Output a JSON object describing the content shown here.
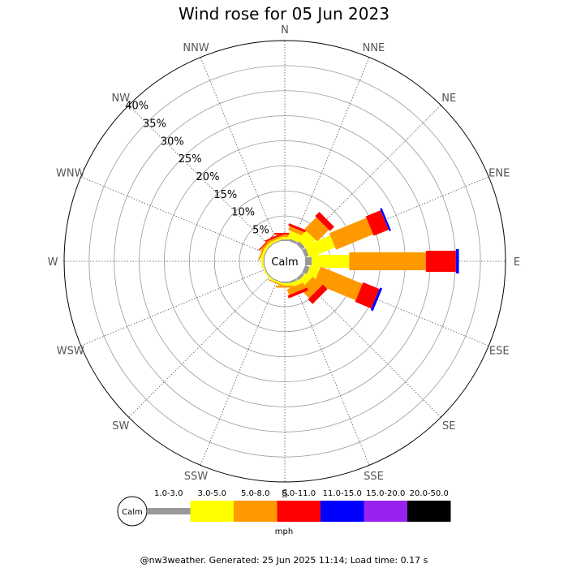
{
  "chart_data": {
    "type": "windrose",
    "title": "Wind rose for 05 Jun 2023",
    "calm_label": "Calm",
    "unit_label": "mph",
    "footer": "@nw3weather. Generated: 25 Jun 2025 11:14; Load time: 0.17 s",
    "directions": [
      "N",
      "NNE",
      "NE",
      "ENE",
      "E",
      "ESE",
      "SE",
      "SSE",
      "S",
      "SSW",
      "SW",
      "WSW",
      "W",
      "WNW",
      "NW",
      "NNW"
    ],
    "rings": [
      5,
      10,
      15,
      20,
      25,
      30,
      35,
      40
    ],
    "ring_labels": [
      "5%",
      "10%",
      "15%",
      "20%",
      "25%",
      "30%",
      "35%",
      "40%"
    ],
    "max_percent": 40,
    "bins": [
      {
        "label": "1.0-3.0",
        "color": "#999999"
      },
      {
        "label": "3.0-5.0",
        "color": "#ffff00"
      },
      {
        "label": "5.0-8.0",
        "color": "#ff9900"
      },
      {
        "label": "8.0-11.0",
        "color": "#ff0000"
      },
      {
        "label": "11.0-15.0",
        "color": "#0000ff"
      },
      {
        "label": "15.0-20.0",
        "color": "#9922ee"
      },
      {
        "label": "20.0-50.0",
        "color": "#000000"
      }
    ],
    "frequencies": [
      {
        "direction": "N",
        "values": [
          0.3,
          0.5,
          0.5,
          0.3,
          0,
          0,
          0
        ]
      },
      {
        "direction": "NNE",
        "values": [
          0.5,
          1.5,
          0.8,
          0.5,
          0,
          0,
          0
        ]
      },
      {
        "direction": "NE",
        "values": [
          0.8,
          2.5,
          3.3,
          1.2,
          0,
          0,
          0
        ]
      },
      {
        "direction": "ENE",
        "values": [
          0.8,
          5.5,
          8.0,
          3.2,
          0.4,
          0,
          0
        ]
      },
      {
        "direction": "E",
        "values": [
          1.3,
          7.5,
          15.3,
          6.0,
          0.6,
          0,
          0
        ]
      },
      {
        "direction": "ESE",
        "values": [
          1.0,
          2.0,
          9.0,
          3.5,
          0.5,
          0,
          0
        ]
      },
      {
        "direction": "SE",
        "values": [
          0.6,
          1.5,
          2.5,
          1.3,
          0,
          0,
          0
        ]
      },
      {
        "direction": "SSE",
        "values": [
          0.4,
          0.9,
          1.2,
          0.6,
          0,
          0,
          0
        ]
      },
      {
        "direction": "S",
        "values": [
          0.3,
          0.5,
          0.4,
          0,
          0,
          0,
          0
        ]
      },
      {
        "direction": "SSW",
        "values": [
          0.2,
          0.3,
          0.2,
          0,
          0,
          0,
          0
        ]
      },
      {
        "direction": "SW",
        "values": [
          0.2,
          0.2,
          0,
          0,
          0,
          0,
          0
        ]
      },
      {
        "direction": "WSW",
        "values": [
          0.2,
          0.2,
          0,
          0,
          0,
          0,
          0
        ]
      },
      {
        "direction": "W",
        "values": [
          0.2,
          0.4,
          0,
          0,
          0,
          0,
          0
        ]
      },
      {
        "direction": "WNW",
        "values": [
          0.2,
          0.5,
          0.3,
          0,
          0,
          0,
          0
        ]
      },
      {
        "direction": "NW",
        "values": [
          0.2,
          0.5,
          0.4,
          0.2,
          0,
          0,
          0
        ]
      },
      {
        "direction": "NNW",
        "values": [
          0.2,
          0.4,
          0.4,
          0.3,
          0,
          0,
          0
        ]
      }
    ]
  }
}
